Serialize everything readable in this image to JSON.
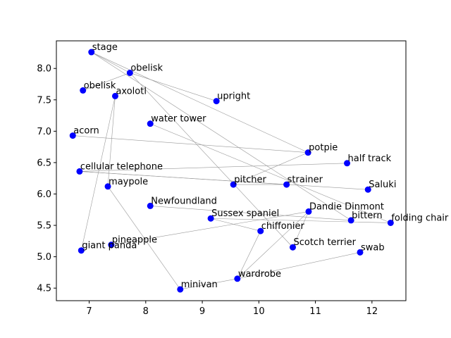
{
  "chart_data": {
    "type": "scatter",
    "title": "",
    "xlabel": "",
    "ylabel": "",
    "xlim": [
      6.42,
      12.6
    ],
    "ylim": [
      4.3,
      8.44
    ],
    "xticks": [
      7,
      8,
      9,
      10,
      11,
      12
    ],
    "yticks": [
      4.5,
      5.0,
      5.5,
      6.0,
      6.5,
      7.0,
      7.5,
      8.0
    ],
    "xtick_labels": [
      "7",
      "8",
      "9",
      "10",
      "11",
      "12"
    ],
    "ytick_labels": [
      "4.5",
      "5.0",
      "5.5",
      "6.0",
      "6.5",
      "7.0",
      "7.5",
      "8.0"
    ],
    "grid": false,
    "marker_color": "#0000ff",
    "edge_color": "#999999",
    "points": [
      {
        "label": "stage",
        "x": 7.04,
        "y": 8.26
      },
      {
        "label": "obelisk",
        "x": 7.72,
        "y": 7.93
      },
      {
        "label": "obelisk",
        "x": 6.89,
        "y": 7.65
      },
      {
        "label": "axolotl",
        "x": 7.46,
        "y": 7.56
      },
      {
        "label": "upright",
        "x": 9.25,
        "y": 7.48
      },
      {
        "label": "water tower",
        "x": 8.08,
        "y": 7.12
      },
      {
        "label": "acorn",
        "x": 6.71,
        "y": 6.93
      },
      {
        "label": "potpie",
        "x": 10.87,
        "y": 6.66
      },
      {
        "label": "half track",
        "x": 11.56,
        "y": 6.49
      },
      {
        "label": "cellular telephone",
        "x": 6.83,
        "y": 6.36
      },
      {
        "label": "maypole",
        "x": 7.33,
        "y": 6.12
      },
      {
        "label": "pitcher",
        "x": 9.55,
        "y": 6.15
      },
      {
        "label": "strainer",
        "x": 10.49,
        "y": 6.15
      },
      {
        "label": "Saluki",
        "x": 11.93,
        "y": 6.07
      },
      {
        "label": "Newfoundland",
        "x": 8.08,
        "y": 5.81
      },
      {
        "label": "Dandie Dinmont",
        "x": 10.88,
        "y": 5.72
      },
      {
        "label": "Sussex spaniel",
        "x": 9.15,
        "y": 5.61
      },
      {
        "label": "bittern",
        "x": 11.63,
        "y": 5.58
      },
      {
        "label": "folding chair",
        "x": 12.33,
        "y": 5.54
      },
      {
        "label": "chiffonier",
        "x": 10.03,
        "y": 5.41
      },
      {
        "label": "pineapple",
        "x": 7.39,
        "y": 5.19
      },
      {
        "label": "Scotch terrier",
        "x": 10.6,
        "y": 5.15
      },
      {
        "label": "giant panda",
        "x": 6.86,
        "y": 5.1
      },
      {
        "label": "swab",
        "x": 11.79,
        "y": 5.07
      },
      {
        "label": "wardrobe",
        "x": 9.62,
        "y": 4.65
      },
      {
        "label": "minivan",
        "x": 8.61,
        "y": 4.48
      }
    ],
    "edges": [
      [
        0,
        1
      ],
      [
        0,
        7
      ],
      [
        0,
        17
      ],
      [
        1,
        2
      ],
      [
        1,
        4
      ],
      [
        1,
        21
      ],
      [
        3,
        22
      ],
      [
        3,
        10
      ],
      [
        5,
        18
      ],
      [
        6,
        7
      ],
      [
        9,
        8
      ],
      [
        9,
        12
      ],
      [
        9,
        13
      ],
      [
        10,
        25
      ],
      [
        25,
        24
      ],
      [
        24,
        23
      ],
      [
        24,
        19
      ],
      [
        24,
        15
      ],
      [
        7,
        11
      ],
      [
        11,
        12
      ],
      [
        14,
        17
      ],
      [
        16,
        19
      ],
      [
        16,
        18
      ],
      [
        20,
        15
      ],
      [
        21,
        15
      ]
    ]
  }
}
